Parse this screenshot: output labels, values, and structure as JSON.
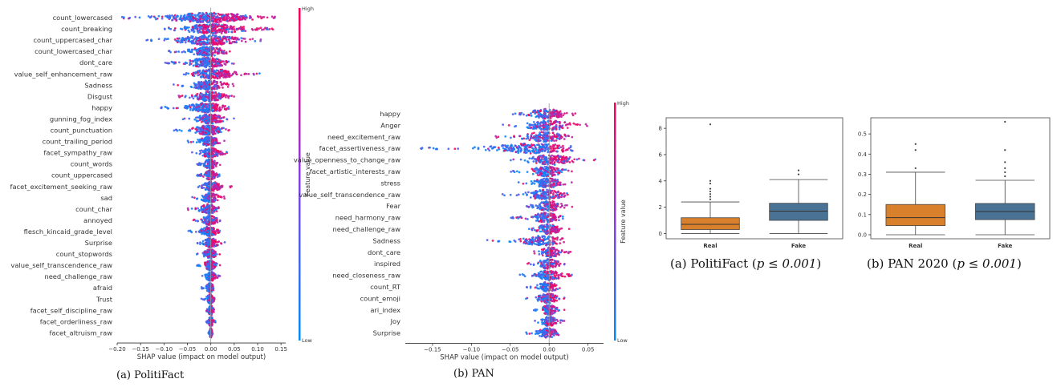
{
  "chart_data": [
    {
      "type": "scatter",
      "kind": "shap-beeswarm",
      "caption": "(a) PolitiFact",
      "xlabel": "SHAP value (impact on model output)",
      "xlim": [
        -0.2,
        0.16
      ],
      "xticks": [
        "−0.20",
        "−0.15",
        "−0.10",
        "−0.05",
        "0.00",
        "0.05",
        "0.10",
        "0.15"
      ],
      "tick_values": [
        -0.2,
        -0.15,
        -0.1,
        -0.05,
        0,
        0.05,
        0.1,
        0.15
      ],
      "colorbar": {
        "label": "Feature value",
        "high": "High",
        "low": "Low"
      },
      "features": [
        {
          "name": "count_lowercased",
          "min": -0.19,
          "max": 0.15,
          "split": 0.0
        },
        {
          "name": "count_breaking",
          "min": -0.1,
          "max": 0.14,
          "split": -0.02
        },
        {
          "name": "count_uppercased_char",
          "min": -0.14,
          "max": 0.11,
          "split": 0.0
        },
        {
          "name": "count_lowercased_char",
          "min": -0.09,
          "max": 0.05,
          "split": 0.0
        },
        {
          "name": "dont_care",
          "min": -0.1,
          "max": 0.05,
          "split": 0.0
        },
        {
          "name": "value_self_enhancement_raw",
          "min": -0.06,
          "max": 0.11,
          "split": 0.0
        },
        {
          "name": "Sadness",
          "min": -0.08,
          "max": 0.05,
          "split": 0.0
        },
        {
          "name": "Disgust",
          "min": -0.07,
          "max": 0.05,
          "split": 0.0
        },
        {
          "name": "happy",
          "min": -0.11,
          "max": 0.04,
          "split": 0.0
        },
        {
          "name": "gunning_fog_index",
          "min": -0.06,
          "max": 0.05,
          "split": 0.0
        },
        {
          "name": "count_punctuation",
          "min": -0.08,
          "max": 0.04,
          "split": 0.0
        },
        {
          "name": "count_trailing_period",
          "min": -0.05,
          "max": 0.03,
          "split": 0.0
        },
        {
          "name": "facet_sympathy_raw",
          "min": -0.04,
          "max": 0.04,
          "split": 0.0
        },
        {
          "name": "count_words",
          "min": -0.03,
          "max": 0.02,
          "split": 0.0
        },
        {
          "name": "count_uppercased",
          "min": -0.03,
          "max": 0.02,
          "split": 0.0
        },
        {
          "name": "facet_excitement_seeking_raw",
          "min": -0.03,
          "max": 0.05,
          "split": 0.0
        },
        {
          "name": "sad",
          "min": -0.04,
          "max": 0.03,
          "split": 0.0
        },
        {
          "name": "count_char",
          "min": -0.05,
          "max": 0.02,
          "split": 0.0
        },
        {
          "name": "annoyed",
          "min": -0.04,
          "max": 0.02,
          "split": 0.0
        },
        {
          "name": "flesch_kincaid_grade_level",
          "min": -0.05,
          "max": 0.02,
          "split": 0.0
        },
        {
          "name": "Surprise",
          "min": -0.03,
          "max": 0.03,
          "split": 0.0
        },
        {
          "name": "count_stopwords",
          "min": -0.03,
          "max": 0.02,
          "split": 0.0
        },
        {
          "name": "value_self_transcendence_raw",
          "min": -0.03,
          "max": 0.02,
          "split": 0.0
        },
        {
          "name": "need_challenge_raw",
          "min": -0.02,
          "max": 0.02,
          "split": 0.0
        },
        {
          "name": "afraid",
          "min": -0.02,
          "max": 0.01,
          "split": 0.0
        },
        {
          "name": "Trust",
          "min": -0.02,
          "max": 0.01,
          "split": 0.0
        },
        {
          "name": "facet_self_discipline_raw",
          "min": -0.01,
          "max": 0.01,
          "split": 0.0
        },
        {
          "name": "facet_orderliness_raw",
          "min": -0.01,
          "max": 0.01,
          "split": 0.0
        },
        {
          "name": "facet_altruism_raw",
          "min": -0.005,
          "max": 0.005,
          "split": 0.0
        }
      ]
    },
    {
      "type": "scatter",
      "kind": "shap-beeswarm",
      "caption": "(b) PAN",
      "xlabel": "SHAP value (impact on model output)",
      "xlim": [
        -0.185,
        0.07
      ],
      "xticks": [
        "−0.15",
        "−0.10",
        "−0.05",
        "0.00",
        "0.05"
      ],
      "tick_values": [
        -0.15,
        -0.1,
        -0.05,
        0,
        0.05
      ],
      "colorbar": {
        "label": "Feature value",
        "high": "High",
        "low": "Low"
      },
      "features": [
        {
          "name": "happy",
          "min": -0.05,
          "max": 0.04,
          "split": 0.0
        },
        {
          "name": "Anger",
          "min": -0.06,
          "max": 0.05,
          "split": 0.0
        },
        {
          "name": "need_excitement_raw",
          "min": -0.07,
          "max": 0.03,
          "split": 0.0
        },
        {
          "name": "facet_assertiveness_raw",
          "min": -0.17,
          "max": 0.03,
          "split": 0.0
        },
        {
          "name": "value_openness_to_change_raw",
          "min": -0.05,
          "max": 0.06,
          "split": 0.0
        },
        {
          "name": "facet_artistic_interests_raw",
          "min": -0.05,
          "max": 0.03,
          "split": 0.0
        },
        {
          "name": "stress",
          "min": -0.04,
          "max": 0.03,
          "split": 0.0
        },
        {
          "name": "value_self_transcendence_raw",
          "min": -0.06,
          "max": 0.03,
          "split": 0.0
        },
        {
          "name": "Fear",
          "min": -0.03,
          "max": 0.03,
          "split": 0.0
        },
        {
          "name": "need_harmony_raw",
          "min": -0.05,
          "max": 0.02,
          "split": 0.0
        },
        {
          "name": "need_challenge_raw",
          "min": -0.03,
          "max": 0.03,
          "split": 0.0
        },
        {
          "name": "Sadness",
          "min": -0.08,
          "max": 0.02,
          "split": 0.0
        },
        {
          "name": "dont_care",
          "min": -0.02,
          "max": 0.03,
          "split": 0.0
        },
        {
          "name": "inspired",
          "min": -0.03,
          "max": 0.02,
          "split": 0.0
        },
        {
          "name": "need_closeness_raw",
          "min": -0.04,
          "max": 0.03,
          "split": 0.0
        },
        {
          "name": "count_RT",
          "min": -0.03,
          "max": 0.02,
          "split": 0.0
        },
        {
          "name": "count_emoji",
          "min": -0.03,
          "max": 0.02,
          "split": 0.0
        },
        {
          "name": "ari_index",
          "min": -0.02,
          "max": 0.02,
          "split": 0.0
        },
        {
          "name": "Joy",
          "min": -0.02,
          "max": 0.02,
          "split": 0.0
        },
        {
          "name": "Surprise",
          "min": -0.03,
          "max": 0.02,
          "split": 0.0
        }
      ]
    },
    {
      "type": "box",
      "caption_prefix": "(a) PolitiFact (",
      "caption_math": "p ≤ 0.001",
      "caption_suffix": ")",
      "categories": [
        "Real",
        "Fake"
      ],
      "ylim": [
        -0.4,
        8.8
      ],
      "yticks": [
        0,
        2,
        4,
        6,
        8
      ],
      "ytick_labels": [
        "0",
        "2",
        "4",
        "6",
        "8"
      ],
      "boxes": [
        {
          "name": "Real",
          "min": 0.0,
          "q1": 0.3,
          "median": 0.7,
          "q3": 1.2,
          "max": 2.4,
          "outliers": [
            2.6,
            2.8,
            3.0,
            3.2,
            3.4,
            3.8,
            4.0,
            8.3
          ],
          "color": "#d8802b"
        },
        {
          "name": "Fake",
          "min": 0.0,
          "q1": 1.0,
          "median": 1.7,
          "q3": 2.3,
          "max": 4.1,
          "outliers": [
            4.5,
            4.8
          ],
          "color": "#4a7295"
        }
      ]
    },
    {
      "type": "box",
      "caption_prefix": "(b) PAN 2020 (",
      "caption_math": "p ≤ 0.001",
      "caption_suffix": ")",
      "categories": [
        "Real",
        "Fake"
      ],
      "ylim": [
        -0.02,
        0.58
      ],
      "yticks": [
        0,
        0.1,
        0.2,
        0.3,
        0.4,
        0.5
      ],
      "ytick_labels": [
        "0.0",
        "0.1",
        "0.2",
        "0.3",
        "0.4",
        "0.5"
      ],
      "boxes": [
        {
          "name": "Real",
          "min": 0.0,
          "q1": 0.045,
          "median": 0.085,
          "q3": 0.15,
          "max": 0.31,
          "outliers": [
            0.33,
            0.42,
            0.45
          ],
          "color": "#d8802b"
        },
        {
          "name": "Fake",
          "min": 0.0,
          "q1": 0.075,
          "median": 0.115,
          "q3": 0.155,
          "max": 0.27,
          "outliers": [
            0.29,
            0.31,
            0.33,
            0.36,
            0.42,
            0.56
          ],
          "color": "#4a7295"
        }
      ]
    }
  ]
}
